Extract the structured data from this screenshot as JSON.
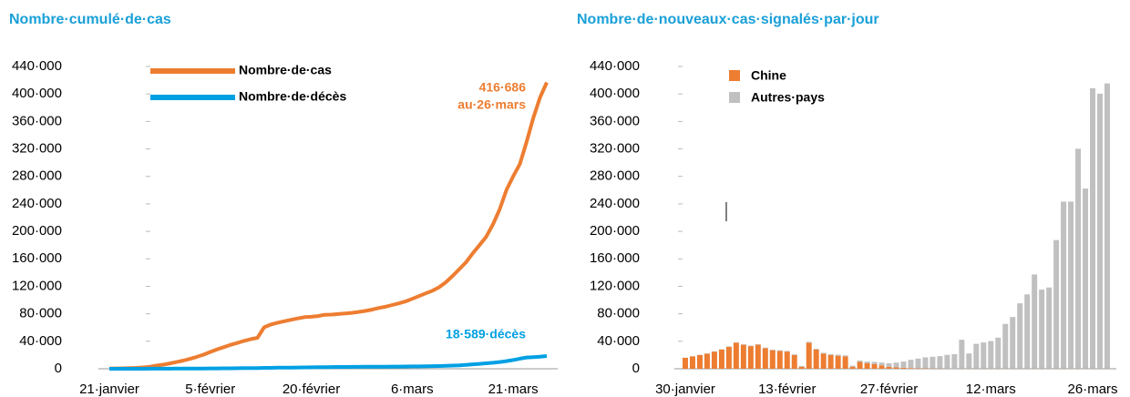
{
  "chart_data": [
    {
      "type": "line",
      "title": "Nombre·cumulé·de·cas",
      "categories": [
        "21·janvier",
        null,
        null,
        null,
        null,
        null,
        null,
        null,
        null,
        null,
        null,
        null,
        null,
        null,
        null,
        "5·février",
        null,
        null,
        null,
        null,
        null,
        null,
        null,
        null,
        null,
        null,
        null,
        null,
        null,
        null,
        "20·février",
        null,
        null,
        null,
        null,
        null,
        null,
        null,
        null,
        null,
        null,
        null,
        null,
        null,
        null,
        "6·mars",
        null,
        null,
        null,
        null,
        null,
        null,
        null,
        null,
        null,
        null,
        null,
        null,
        null,
        null,
        "21·mars",
        null,
        null,
        null,
        null,
        null
      ],
      "series": [
        {
          "name": "Nombre·de·cas",
          "color": "#ed7d31",
          "values": [
            300,
            550,
            650,
            900,
            1300,
            2000,
            2800,
            4600,
            6000,
            7800,
            9800,
            11900,
            14500,
            17300,
            20600,
            24500,
            28200,
            31400,
            34800,
            37500,
            40500,
            43100,
            45100,
            60300,
            64400,
            67100,
            69200,
            71300,
            73300,
            75200,
            75700,
            76800,
            78600,
            78900,
            79600,
            80400,
            81400,
            82700,
            84100,
            86000,
            88400,
            90300,
            92800,
            95100,
            97900,
            101800,
            105800,
            109800,
            113600,
            118600,
            125900,
            135000,
            145000,
            155000,
            168000,
            180000,
            192000,
            210000,
            232000,
            260000,
            280000,
            298000,
            330000,
            365000,
            395000,
            416686
          ]
        },
        {
          "name": "Nombre·de·décès",
          "color": "#00a0e3",
          "values": [
            6,
            17,
            18,
            26,
            42,
            56,
            82,
            131,
            133,
            171,
            213,
            259,
            304,
            362,
            426,
            492,
            565,
            638,
            724,
            813,
            910,
            1018,
            1115,
            1261,
            1383,
            1526,
            1669,
            1775,
            1873,
            2009,
            2126,
            2247,
            2360,
            2460,
            2618,
            2699,
            2763,
            2800,
            2858,
            2923,
            2977,
            3050,
            3117,
            3202,
            3285,
            3387,
            3494,
            3599,
            3827,
            4025,
            4296,
            4628,
            5043,
            5720,
            6467,
            7158,
            7955,
            8778,
            9840,
            11168,
            12782,
            14652,
            16375,
            17000,
            17500,
            18589
          ]
        }
      ],
      "annotations": [
        "416·686",
        "au·26·mars",
        "18·589·décès"
      ],
      "ylim": [
        0,
        440000
      ],
      "yticks": [
        0,
        {
          "value": 40000,
          "label": "40·000"
        },
        {
          "value": 80000,
          "label": "80·000"
        },
        {
          "value": 120000,
          "label": "120·000"
        },
        {
          "value": 160000,
          "label": "160·000"
        },
        {
          "value": 200000,
          "label": "200·000"
        },
        {
          "value": 240000,
          "label": "240·000"
        },
        {
          "value": 280000,
          "label": "280·000"
        },
        {
          "value": 320000,
          "label": "320·000"
        },
        {
          "value": 360000,
          "label": "360·000"
        },
        {
          "value": 400000,
          "label": "400·000"
        },
        {
          "value": 440000,
          "label": "440·000"
        }
      ]
    },
    {
      "type": "bar",
      "title": "Nombre·de·nouveaux·cas·signalés·par·jour",
      "stacked": true,
      "categories": [
        "30·janvier",
        null,
        null,
        null,
        null,
        null,
        null,
        null,
        null,
        null,
        null,
        null,
        null,
        null,
        "13·février",
        null,
        null,
        null,
        null,
        null,
        null,
        null,
        null,
        null,
        null,
        null,
        null,
        null,
        "27·février",
        null,
        null,
        null,
        null,
        null,
        null,
        null,
        null,
        null,
        null,
        null,
        null,
        null,
        "12·mars",
        null,
        null,
        null,
        null,
        null,
        null,
        null,
        null,
        null,
        null,
        null,
        null,
        null,
        "26·mars",
        null,
        null
      ],
      "series": [
        {
          "name": "Chine",
          "color": "#ed7d31",
          "values": [
            16000,
            18000,
            20000,
            22000,
            25000,
            28000,
            32000,
            38000,
            35000,
            33000,
            35000,
            30000,
            27000,
            26000,
            25000,
            20000,
            3000,
            38000,
            28000,
            22000,
            20000,
            19000,
            18000,
            3000,
            10000,
            8000,
            7000,
            5000,
            3000,
            2000,
            1500,
            1000,
            800,
            600,
            500,
            400,
            300,
            200,
            300,
            300,
            300,
            300,
            300,
            300,
            300,
            300,
            300,
            300,
            300,
            300,
            300,
            300,
            300,
            300,
            300,
            300,
            300,
            300,
            300
          ]
        },
        {
          "name": "Autres·pays",
          "color": "#c0c0c0",
          "values": [
            200,
            200,
            300,
            300,
            400,
            400,
            500,
            600,
            600,
            700,
            800,
            800,
            900,
            1000,
            1000,
            1000,
            1100,
            1200,
            1200,
            1300,
            1400,
            1500,
            1500,
            1600,
            2000,
            2500,
            3000,
            4000,
            5000,
            7000,
            9000,
            12000,
            14000,
            16000,
            17000,
            18000,
            20000,
            21000,
            42000,
            22000,
            36000,
            38000,
            40000,
            45000,
            65000,
            75000,
            95000,
            108000,
            137000,
            115000,
            118000,
            187000,
            243000,
            243000,
            320000,
            262000,
            408000,
            400000,
            415000
          ]
        }
      ],
      "ylim": [
        0,
        440000
      ],
      "yticks": [
        0,
        {
          "value": 40000,
          "label": "40·000"
        },
        {
          "value": 80000,
          "label": "80·000"
        },
        {
          "value": 120000,
          "label": "120·000"
        },
        {
          "value": 160000,
          "label": "160·000"
        },
        {
          "value": 200000,
          "label": "200·000"
        },
        {
          "value": 240000,
          "label": "240·000"
        },
        {
          "value": 280000,
          "label": "280·000"
        },
        {
          "value": 320000,
          "label": "320·000"
        },
        {
          "value": 360000,
          "label": "360·000"
        },
        {
          "value": 400000,
          "label": "400·000"
        },
        {
          "value": 440000,
          "label": "440·000"
        }
      ]
    }
  ]
}
